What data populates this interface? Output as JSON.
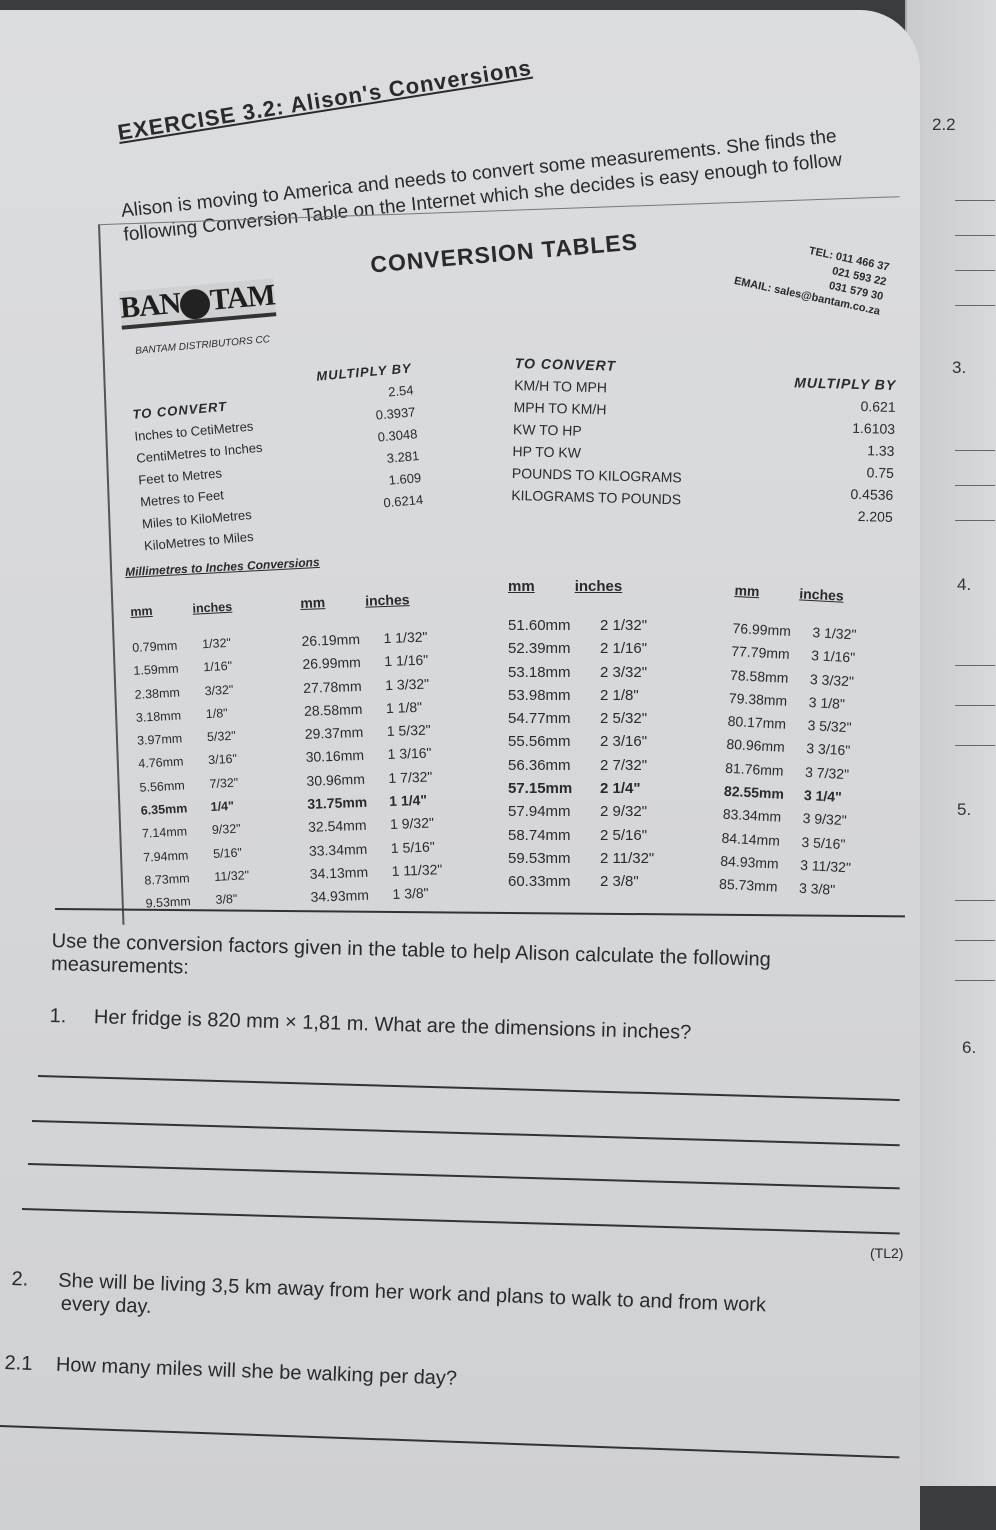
{
  "exercise_title": "EXERCISE 3.2: Alison's Conversions",
  "intro": [
    "Alison is moving to America and needs to convert some measurements. She finds the",
    "following Conversion Table on the Internet which she decides is easy enough to follow"
  ],
  "conversion_tables": {
    "heading": "CONVERSION TABLES",
    "logo_text": "BANTAM",
    "company": "BANTAM DISTRIBUTORS CC",
    "tel_lines": [
      "TEL: 011 466 37",
      "021 593 22",
      "031 579 30"
    ],
    "email": "EMAIL: sales@bantam.co.za",
    "left": {
      "header_convert": "TO CONVERT",
      "header_multiply": "MULTIPLY BY",
      "rows": [
        {
          "label": "Inches to CetiMetres",
          "factor": "2.54"
        },
        {
          "label": "CentiMetres to Inches",
          "factor": "0.3937"
        },
        {
          "label": "Feet to Metres",
          "factor": "0.3048"
        },
        {
          "label": "Metres to Feet",
          "factor": "3.281"
        },
        {
          "label": "Miles to KiloMetres",
          "factor": "1.609"
        },
        {
          "label": "KiloMetres to Miles",
          "factor": "0.6214"
        }
      ]
    },
    "right": {
      "header_convert": "TO CONVERT",
      "header_multiply": "MULTIPLY BY",
      "rows": [
        {
          "label": "KM/H TO MPH",
          "factor": "0.621"
        },
        {
          "label": "MPH TO KM/H",
          "factor": "1.6103"
        },
        {
          "label": "KW TO HP",
          "factor": "1.33"
        },
        {
          "label": "HP TO KW",
          "factor": "0.75"
        },
        {
          "label": "POUNDS TO KILOGRAMS",
          "factor": "0.4536"
        },
        {
          "label": "KILOGRAMS TO POUNDS",
          "factor": "2.205"
        }
      ]
    }
  },
  "mm_table": {
    "title": "Millimetres to Inches Conversions",
    "col_mm": "mm",
    "col_inches": "inches",
    "columns": [
      [
        [
          "0.79mm",
          "1/32\""
        ],
        [
          "1.59mm",
          "1/16\""
        ],
        [
          "2.38mm",
          "3/32\""
        ],
        [
          "3.18mm",
          "1/8\""
        ],
        [
          "3.97mm",
          "5/32\""
        ],
        [
          "4.76mm",
          "3/16\""
        ],
        [
          "5.56mm",
          "7/32\""
        ],
        [
          "6.35mm",
          "1/4\""
        ],
        [
          "7.14mm",
          "9/32\""
        ],
        [
          "7.94mm",
          "5/16\""
        ],
        [
          "8.73mm",
          "11/32\""
        ],
        [
          "9.53mm",
          "3/8\""
        ]
      ],
      [
        [
          "26.19mm",
          "1 1/32\""
        ],
        [
          "26.99mm",
          "1 1/16\""
        ],
        [
          "27.78mm",
          "1 3/32\""
        ],
        [
          "28.58mm",
          "1 1/8\""
        ],
        [
          "29.37mm",
          "1 5/32\""
        ],
        [
          "30.16mm",
          "1 3/16\""
        ],
        [
          "30.96mm",
          "1 7/32\""
        ],
        [
          "31.75mm",
          "1 1/4\""
        ],
        [
          "32.54mm",
          "1 9/32\""
        ],
        [
          "33.34mm",
          "1 5/16\""
        ],
        [
          "34.13mm",
          "1 11/32\""
        ],
        [
          "34.93mm",
          "1 3/8\""
        ]
      ],
      [
        [
          "51.60mm",
          "2 1/32\""
        ],
        [
          "52.39mm",
          "2 1/16\""
        ],
        [
          "53.18mm",
          "2 3/32\""
        ],
        [
          "53.98mm",
          "2 1/8\""
        ],
        [
          "54.77mm",
          "2 5/32\""
        ],
        [
          "55.56mm",
          "2 3/16\""
        ],
        [
          "56.36mm",
          "2 7/32\""
        ],
        [
          "57.15mm",
          "2 1/4\""
        ],
        [
          "57.94mm",
          "2 9/32\""
        ],
        [
          "58.74mm",
          "2 5/16\""
        ],
        [
          "59.53mm",
          "2 11/32\""
        ],
        [
          "60.33mm",
          "2 3/8\""
        ]
      ],
      [
        [
          "76.99mm",
          "3 1/32\""
        ],
        [
          "77.79mm",
          "3 1/16\""
        ],
        [
          "78.58mm",
          "3 3/32\""
        ],
        [
          "79.38mm",
          "3 1/8\""
        ],
        [
          "80.17mm",
          "3 5/32\""
        ],
        [
          "80.96mm",
          "3 3/16\""
        ],
        [
          "81.76mm",
          "3 7/32\""
        ],
        [
          "82.55mm",
          "3 1/4\""
        ],
        [
          "83.34mm",
          "3 9/32\""
        ],
        [
          "84.14mm",
          "3 5/16\""
        ],
        [
          "84.93mm",
          "3 11/32\""
        ],
        [
          "85.73mm",
          "3 3/8\""
        ]
      ]
    ]
  },
  "instructions": [
    "Use the conversion factors given in the table to help Alison calculate the following",
    "measurements:"
  ],
  "q1": {
    "number": "1.",
    "text": "Her fridge is 820 mm × 1,81 m. What are the dimensions in inches?"
  },
  "mark": "(TL2)",
  "q2": {
    "number": "2.",
    "text": "She will be living 3,5 km away from her work and plans to walk to and from work",
    "text2": "every day."
  },
  "q21": {
    "number": "2.1",
    "text": "How many miles will she be walking per day?"
  },
  "margin_numbers": [
    "2.2",
    "3.",
    "4.",
    "5.",
    "6."
  ]
}
